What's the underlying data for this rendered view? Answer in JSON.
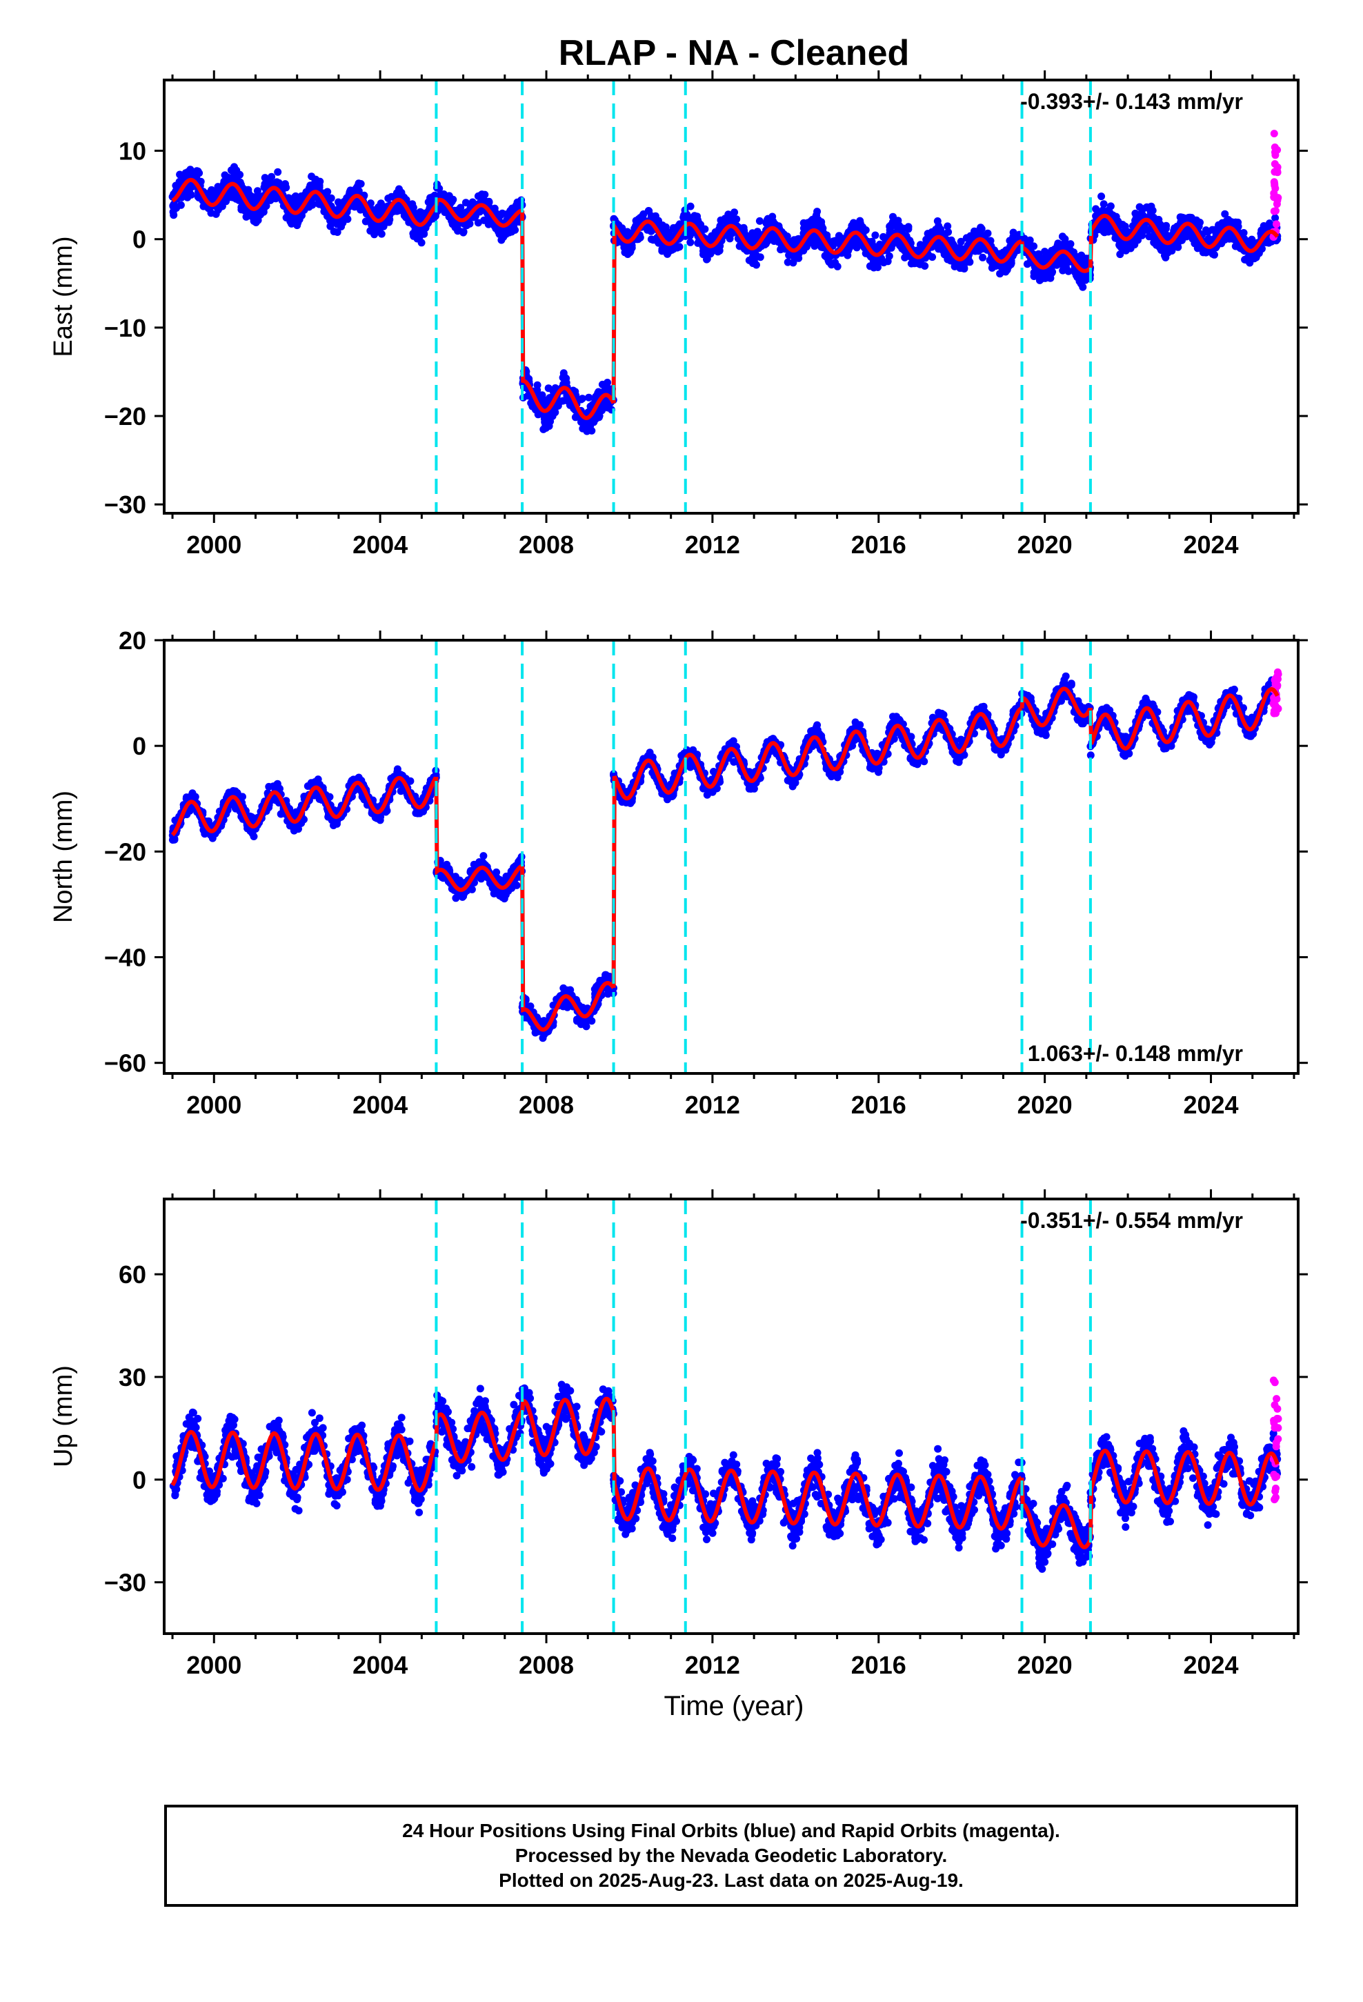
{
  "title": "RLAP  - NA - Cleaned",
  "xlabel": "Time (year)",
  "footer": {
    "line1": "24 Hour Positions Using Final Orbits (blue) and Rapid Orbits (magenta).",
    "line2": "Processed by the Nevada Geodetic Laboratory.",
    "line3": "Plotted on 2025-Aug-23. Last data on 2025-Aug-19."
  },
  "colors": {
    "final_orbits": "#0000ff",
    "rapid_orbits": "#ff00ff",
    "model": "#ff0000",
    "steps": "#00e5ee",
    "frame": "#000000"
  },
  "chart_data": [
    {
      "type": "scatter",
      "component": "East",
      "ylabel": "East (mm)",
      "rate_label": "-0.393+/- 0.143 mm/yr",
      "rate_position": "top-right",
      "xlim": [
        1998.8,
        2026.1
      ],
      "ylim": [
        -31,
        18
      ],
      "x_ticks": [
        2000,
        2004,
        2008,
        2012,
        2016,
        2020,
        2024
      ],
      "y_ticks": [
        -30,
        -20,
        -10,
        0,
        10
      ],
      "steps": [
        2005.35,
        2007.42,
        2009.62,
        2011.35,
        2019.45,
        2021.1
      ],
      "segments": [
        {
          "x": [
            1999.0,
            2005.35
          ],
          "offset": 5.6,
          "rate": -0.45,
          "amp": 1.3
        },
        {
          "x": [
            2005.35,
            2007.42
          ],
          "offset": 3.5,
          "rate": -0.6,
          "amp": 1.0
        },
        {
          "x": [
            2007.42,
            2009.62
          ],
          "offset": -17.5,
          "rate": -0.8,
          "amp": 1.5
        },
        {
          "x": [
            2009.62,
            2019.45
          ],
          "offset": 1.0,
          "rate": -0.25,
          "amp": 1.2
        },
        {
          "x": [
            2019.45,
            2021.1
          ],
          "offset": -2.0,
          "rate": -0.4,
          "amp": 1.0
        },
        {
          "x": [
            2021.1,
            2025.6
          ],
          "offset": 1.6,
          "rate": -0.45,
          "amp": 1.2
        }
      ],
      "scatter_sigma": 1.6,
      "rapid": {
        "x": [
          2025.5,
          2025.62
        ],
        "y": [
          0,
          12
        ]
      }
    },
    {
      "type": "scatter",
      "component": "North",
      "ylabel": "North (mm)",
      "rate_label": "1.063+/- 0.148 mm/yr",
      "rate_position": "bottom-right",
      "xlim": [
        1998.8,
        2026.1
      ],
      "ylim": [
        -62,
        20
      ],
      "x_ticks": [
        2000,
        2004,
        2008,
        2012,
        2016,
        2020,
        2024
      ],
      "y_ticks": [
        -60,
        -40,
        -20,
        0,
        20
      ],
      "steps": [
        2005.35,
        2007.42,
        2009.62,
        2011.35,
        2019.45,
        2021.1
      ],
      "segments": [
        {
          "x": [
            1999.0,
            2005.35
          ],
          "offset": -14.0,
          "rate": 0.9,
          "amp": 3.0
        },
        {
          "x": [
            2005.35,
            2007.42
          ],
          "offset": -25.5,
          "rate": 0.4,
          "amp": 2.0
        },
        {
          "x": [
            2007.42,
            2009.62
          ],
          "offset": -52.5,
          "rate": 2.5,
          "amp": 2.5
        },
        {
          "x": [
            2009.62,
            2019.45
          ],
          "offset": -7.0,
          "rate": 1.1,
          "amp": 3.3
        },
        {
          "x": [
            2019.45,
            2021.1
          ],
          "offset": 6.0,
          "rate": 1.8,
          "amp": 3.0
        },
        {
          "x": [
            2021.1,
            2025.6
          ],
          "offset": 2.0,
          "rate": 1.2,
          "amp": 3.5
        }
      ],
      "scatter_sigma": 1.8,
      "rapid": {
        "x": [
          2025.5,
          2025.62
        ],
        "y": [
          6,
          14
        ]
      }
    },
    {
      "type": "scatter",
      "component": "Up",
      "ylabel": "Up (mm)",
      "rate_label": "-0.351+/- 0.554 mm/yr",
      "rate_position": "top-right",
      "xlim": [
        1998.8,
        2026.1
      ],
      "ylim": [
        -45,
        82
      ],
      "x_ticks": [
        2000,
        2004,
        2008,
        2012,
        2016,
        2020,
        2024
      ],
      "y_ticks": [
        -30,
        0,
        30,
        60
      ],
      "steps": [
        2005.35,
        2007.42,
        2009.62,
        2011.35,
        2019.45,
        2021.1
      ],
      "segments": [
        {
          "x": [
            1999.0,
            2005.35
          ],
          "offset": 6.0,
          "rate": -0.2,
          "amp": 8.0
        },
        {
          "x": [
            2005.35,
            2007.42
          ],
          "offset": 12.0,
          "rate": 0.5,
          "amp": 7.0
        },
        {
          "x": [
            2007.42,
            2009.62
          ],
          "offset": 15.0,
          "rate": 0.3,
          "amp": 8.0
        },
        {
          "x": [
            2009.62,
            2019.45
          ],
          "offset": -4.0,
          "rate": -0.3,
          "amp": 7.5
        },
        {
          "x": [
            2019.45,
            2021.1
          ],
          "offset": -13.0,
          "rate": -0.5,
          "amp": 6.0
        },
        {
          "x": [
            2021.1,
            2025.6
          ],
          "offset": 1.0,
          "rate": -0.2,
          "amp": 7.5
        }
      ],
      "scatter_sigma": 5.5,
      "rapid": {
        "x": [
          2025.5,
          2025.62
        ],
        "y": [
          -8,
          30
        ]
      }
    }
  ]
}
